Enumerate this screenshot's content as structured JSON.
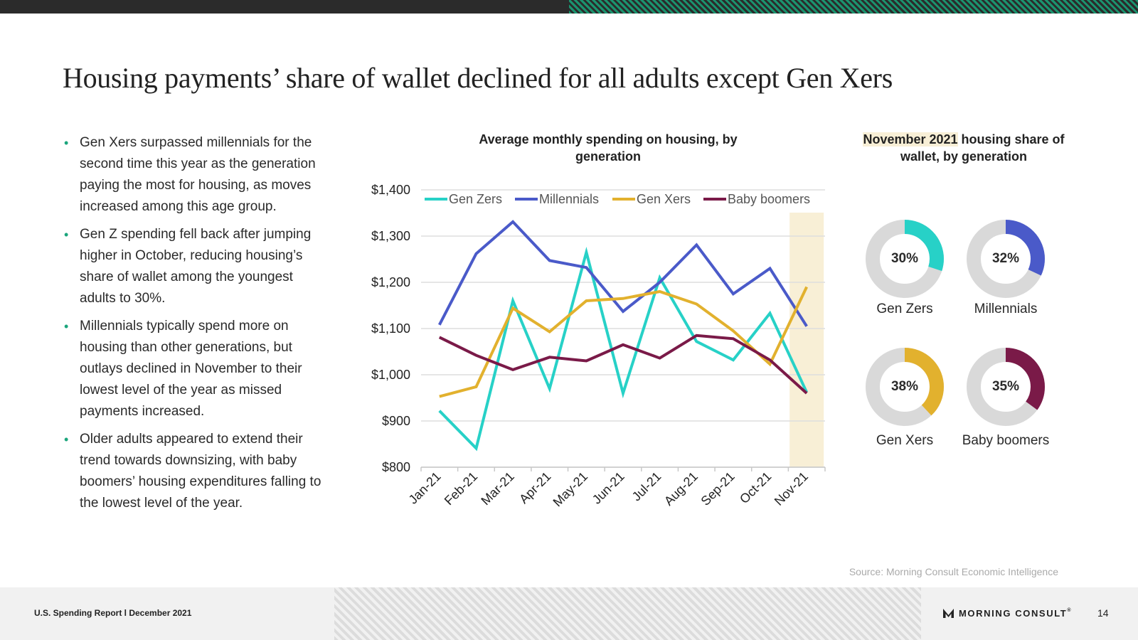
{
  "page_title": "Housing payments’ share of wallet declined for all adults except Gen Xers",
  "bullets": [
    "Gen Xers surpassed millennials for the second time this year as the generation paying the most for housing, as moves increased among this age group.",
    "Gen Z spending fell back after jumping higher in October, reducing housing’s share of wallet among the youngest adults to 30%.",
    "Millennials typically spend more on housing than other generations, but outlays declined in November to their lowest level of the year as missed payments increased.",
    "Older adults appeared to extend their trend towards downsizing, with baby boomers’ housing expenditures falling to the lowest level of the year."
  ],
  "chart_data": [
    {
      "type": "line",
      "title": "Average monthly spending on housing, by generation",
      "categories": [
        "Jan-21",
        "Feb-21",
        "Mar-21",
        "Apr-21",
        "May-21",
        "Jun-21",
        "Jul-21",
        "Aug-21",
        "Sep-21",
        "Oct-21",
        "Nov-21"
      ],
      "series": [
        {
          "name": "Gen Zers",
          "color": "#27d1c7",
          "values": [
            922,
            841,
            1160,
            970,
            1265,
            960,
            1210,
            1072,
            1032,
            1133,
            962
          ]
        },
        {
          "name": "Millennials",
          "color": "#4a5ac9",
          "values": [
            1108,
            1262,
            1331,
            1247,
            1232,
            1137,
            1200,
            1281,
            1175,
            1230,
            1105
          ]
        },
        {
          "name": "Gen Xers",
          "color": "#e2b12e",
          "values": [
            953,
            974,
            1144,
            1093,
            1160,
            1165,
            1180,
            1153,
            1095,
            1023,
            1190
          ]
        },
        {
          "name": "Baby boomers",
          "color": "#7a1a48",
          "values": [
            1081,
            1042,
            1011,
            1038,
            1030,
            1065,
            1036,
            1085,
            1078,
            1032,
            960
          ]
        }
      ],
      "ylim": [
        800,
        1400
      ],
      "yticks": [
        "$1,400",
        "$1,300",
        "$1,200",
        "$1,100",
        "$1,000",
        "$900",
        "$800"
      ],
      "ytick_values": [
        1400,
        1300,
        1200,
        1100,
        1000,
        900,
        800
      ],
      "highlighted_category": "Nov-21",
      "highlight_color": "#f8efd6",
      "legend_position": "top",
      "grid": true
    },
    {
      "type": "pie",
      "title_highlight": "November 2021",
      "title_rest": " housing share of wallet, by generation",
      "track_color": "#d9d9d9",
      "slices": [
        {
          "label": "Gen Zers",
          "value": 30,
          "display": "30%",
          "color": "#27d1c7"
        },
        {
          "label": "Millennials",
          "value": 32,
          "display": "32%",
          "color": "#4a5ac9"
        },
        {
          "label": "Gen Xers",
          "value": 38,
          "display": "38%",
          "color": "#e2b12e"
        },
        {
          "label": "Baby boomers",
          "value": 35,
          "display": "35%",
          "color": "#7a1a48"
        }
      ]
    }
  ],
  "source": "Source: Morning Consult Economic Intelligence",
  "footer": {
    "report_label": "U.S. Spending Report l December 2021",
    "logo_text": "MORNING CONSULT",
    "logo_tm": "®",
    "page_number": "14"
  }
}
